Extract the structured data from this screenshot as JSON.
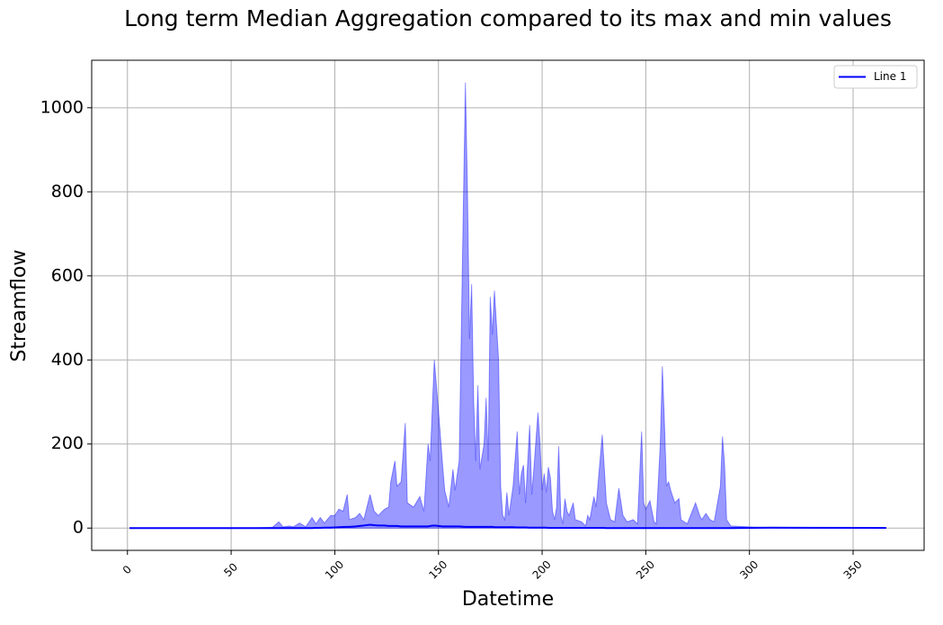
{
  "chart_data": {
    "type": "line",
    "title": "Long term Median Aggregation compared to its max and min values",
    "x_label": "Datetime",
    "y_label": "Streamflow",
    "x": [
      1,
      60,
      70,
      73,
      75,
      78,
      80,
      83,
      86,
      89,
      91,
      93,
      95,
      98,
      100,
      102,
      104,
      106,
      107,
      110,
      112,
      114,
      117,
      119,
      121,
      124,
      126,
      127,
      129,
      130,
      132,
      134,
      135,
      138,
      141,
      143,
      145,
      146,
      148,
      150,
      152,
      153,
      155,
      157,
      158,
      160,
      163,
      164,
      165,
      166,
      167,
      168,
      169,
      170,
      172,
      173,
      174,
      175,
      176,
      177,
      179,
      180,
      181,
      182,
      183,
      184,
      186,
      188,
      189,
      190,
      191,
      192,
      194,
      195,
      196,
      198,
      199,
      200,
      201,
      202,
      203,
      204,
      205,
      206,
      207,
      208,
      209,
      210,
      211,
      212,
      213,
      215,
      216,
      219,
      221,
      222,
      223,
      225,
      226,
      229,
      231,
      233,
      235,
      237,
      239,
      241,
      244,
      246,
      248,
      249,
      250,
      252,
      254,
      255,
      257,
      258,
      259,
      260,
      261,
      262,
      264,
      266,
      267,
      270,
      274,
      276,
      277,
      279,
      281,
      283,
      286,
      287,
      288,
      289,
      291,
      300,
      310,
      366
    ],
    "series": [
      {
        "name": "Line 1",
        "color": "#0000ff",
        "values": [
          0,
          0,
          0,
          0,
          0,
          0,
          0,
          0,
          0,
          0,
          0.5,
          0.5,
          1,
          1,
          1.5,
          2,
          2.5,
          3,
          3,
          4,
          5,
          6,
          8,
          7,
          6,
          6,
          5,
          5,
          5,
          5,
          4,
          4,
          4,
          4,
          4,
          4,
          4,
          5,
          6,
          5,
          4,
          4,
          4,
          4,
          4,
          4,
          3,
          3,
          3,
          3,
          3,
          3,
          3,
          3,
          3,
          3,
          3,
          3,
          3,
          2,
          2,
          2,
          2,
          2,
          2,
          2,
          2,
          1.5,
          1.5,
          1.5,
          1.5,
          1.5,
          1,
          1,
          1,
          1,
          1,
          1,
          1,
          1,
          0.5,
          0.5,
          0.5,
          0.5,
          0.5,
          0.5,
          0.5,
          0.5,
          0.5,
          0.5,
          0.5,
          0.5,
          0.5,
          0.5,
          0.5,
          0.5,
          0.5,
          0.5,
          0.5,
          0.5,
          0,
          0,
          0,
          0,
          0,
          0,
          0,
          0,
          0,
          0,
          0,
          0,
          0,
          0,
          0,
          0,
          0,
          0,
          0,
          0,
          0,
          0,
          0,
          0,
          0,
          0,
          0,
          0,
          0,
          0,
          0,
          0,
          0,
          0,
          0,
          0.5,
          1,
          0.5
        ]
      }
    ],
    "area": {
      "color": "#0000ff",
      "opacity": 0.4,
      "upper": [
        0,
        0,
        2,
        15,
        3,
        5,
        3,
        12,
        3,
        25,
        10,
        25,
        12,
        30,
        30,
        45,
        40,
        80,
        20,
        25,
        35,
        20,
        80,
        40,
        30,
        45,
        50,
        110,
        160,
        100,
        110,
        250,
        60,
        50,
        75,
        40,
        200,
        160,
        400,
        280,
        150,
        90,
        50,
        140,
        90,
        160,
        1060,
        800,
        450,
        580,
        300,
        160,
        340,
        140,
        200,
        310,
        160,
        550,
        460,
        565,
        400,
        100,
        30,
        20,
        85,
        30,
        100,
        230,
        80,
        130,
        150,
        60,
        245,
        80,
        140,
        275,
        200,
        90,
        130,
        85,
        145,
        120,
        40,
        20,
        50,
        195,
        30,
        10,
        70,
        40,
        30,
        60,
        20,
        15,
        5,
        30,
        20,
        75,
        50,
        222,
        60,
        20,
        15,
        95,
        30,
        15,
        20,
        10,
        230,
        60,
        45,
        65,
        15,
        10,
        200,
        385,
        250,
        100,
        110,
        90,
        60,
        70,
        20,
        10,
        60,
        30,
        20,
        35,
        20,
        15,
        100,
        218,
        150,
        20,
        5,
        3,
        1,
        0
      ],
      "lower": [
        0,
        0,
        0,
        0,
        0,
        0,
        0,
        0,
        0,
        0,
        0,
        0,
        0,
        0,
        0,
        0,
        0,
        0,
        0,
        0,
        0,
        0,
        0,
        0,
        0,
        0,
        0,
        0,
        0,
        0,
        0,
        0,
        0,
        0,
        0,
        0,
        0,
        0,
        0,
        0,
        0,
        0,
        0,
        0,
        0,
        0,
        0,
        0,
        0,
        0,
        0,
        0,
        0,
        0,
        0,
        0,
        0,
        0,
        0,
        0,
        0,
        0,
        0,
        0,
        0,
        0,
        0,
        0,
        0,
        0,
        0,
        0,
        0,
        0,
        0,
        0,
        0,
        0,
        0,
        0,
        0,
        0,
        0,
        0,
        0,
        0,
        0,
        0,
        0,
        0,
        0,
        0,
        0,
        0,
        0,
        0,
        0,
        0,
        0,
        0,
        0,
        0,
        0,
        0,
        0,
        0,
        0,
        0,
        0,
        0,
        0,
        0,
        0,
        0,
        0,
        0,
        0,
        0,
        0,
        0,
        0,
        0,
        0,
        0,
        0,
        0,
        0,
        0,
        0,
        0,
        0,
        0,
        0,
        0,
        0,
        0,
        0,
        0
      ]
    },
    "xlim": [
      -17.25,
      384.25
    ],
    "xticks": [
      0,
      50,
      100,
      150,
      200,
      250,
      300,
      350
    ],
    "ylim": [
      -53,
      1113
    ],
    "yticks": [
      0,
      200,
      400,
      600,
      800,
      1000
    ],
    "grid": true,
    "legend": "upper right"
  }
}
